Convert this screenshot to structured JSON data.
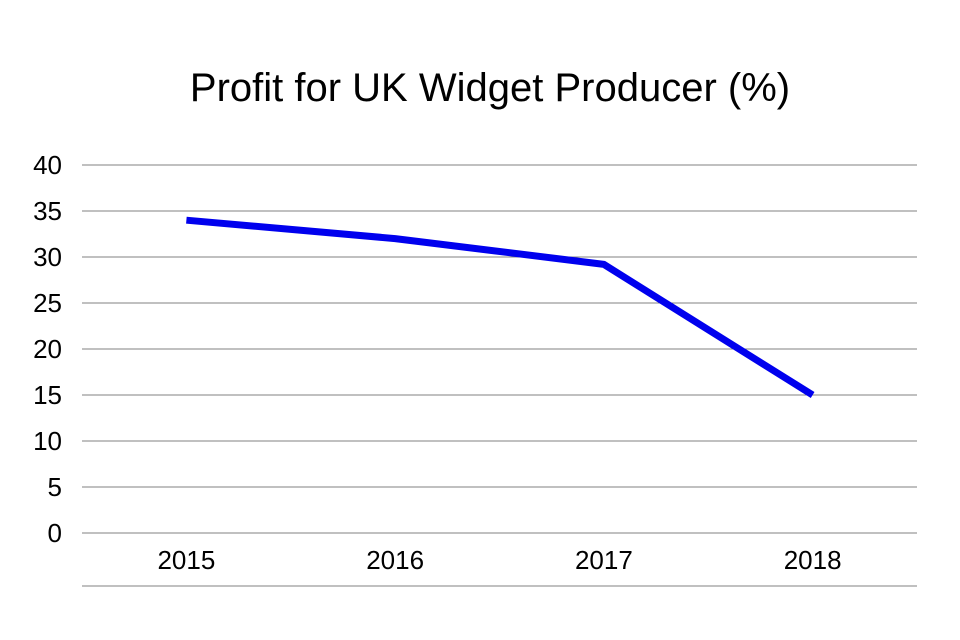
{
  "chart_data": {
    "type": "line",
    "title": "Profit for UK Widget Producer (%)",
    "xlabel": "",
    "ylabel": "",
    "categories": [
      "2015",
      "2016",
      "2017",
      "2018"
    ],
    "series": [
      {
        "values": [
          34,
          32,
          29.2,
          15
        ],
        "color": "#0000ee"
      }
    ],
    "ylim": [
      0,
      40
    ],
    "yticks": [
      0,
      5,
      10,
      15,
      20,
      25,
      30,
      35,
      40
    ],
    "grid": true,
    "gridline_color": "#808080",
    "legend": "none"
  }
}
